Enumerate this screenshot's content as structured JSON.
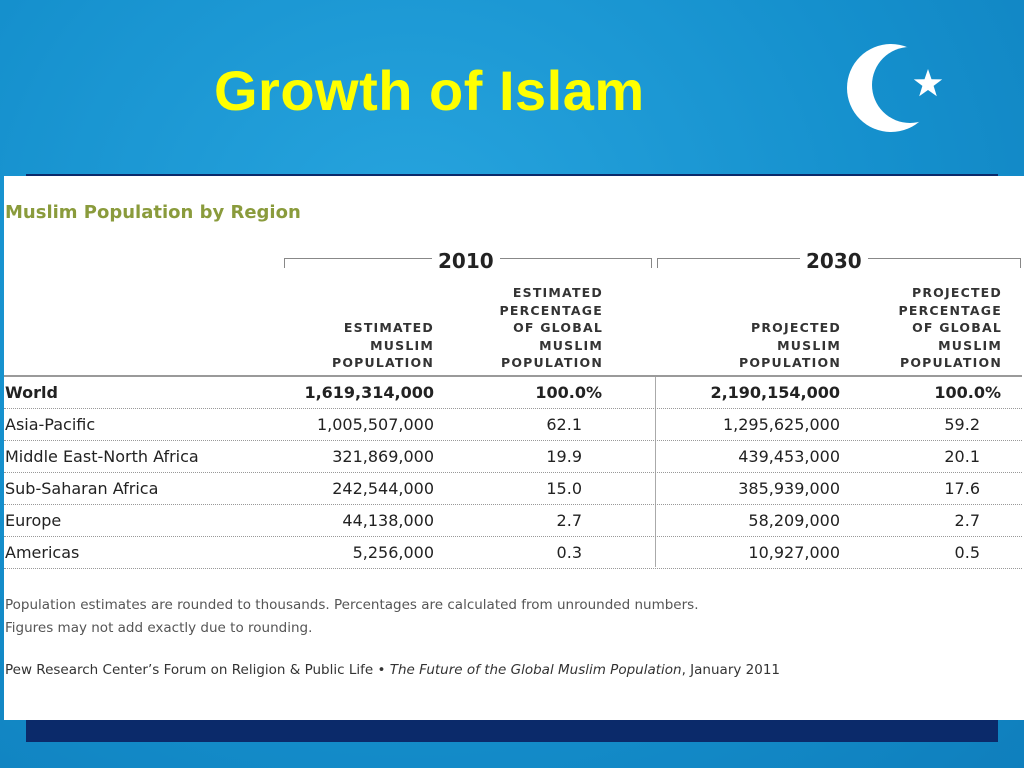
{
  "slide": {
    "title": "Growth of Islam",
    "accent_color": "#ffff00",
    "background_color": "#1591cf",
    "emblem_icon": "crescent-star-icon"
  },
  "table": {
    "title": "Muslim Population by Region",
    "groups": [
      {
        "year": "2010"
      },
      {
        "year": "2030"
      }
    ],
    "headers": [
      "ESTIMATED\nMUSLIM\nPOPULATION",
      "ESTIMATED\nPERCENTAGE\nOF GLOBAL\nMUSLIM\nPOPULATION",
      "PROJECTED\nMUSLIM\nPOPULATION",
      "PROJECTED\nPERCENTAGE\nOF GLOBAL\nMUSLIM\nPOPULATION"
    ],
    "rows": [
      {
        "region": "World",
        "pop_2010": "1,619,314,000",
        "pct_2010": "100.0%",
        "pop_2030": "2,190,154,000",
        "pct_2030": "100.0%"
      },
      {
        "region": "Asia-Pacific",
        "pop_2010": "1,005,507,000",
        "pct_2010": "62.1",
        "pop_2030": "1,295,625,000",
        "pct_2030": "59.2"
      },
      {
        "region": "Middle East-North Africa",
        "pop_2010": "321,869,000",
        "pct_2010": "19.9",
        "pop_2030": "439,453,000",
        "pct_2030": "20.1"
      },
      {
        "region": "Sub-Saharan Africa",
        "pop_2010": "242,544,000",
        "pct_2010": "15.0",
        "pop_2030": "385,939,000",
        "pct_2030": "17.6"
      },
      {
        "region": "Europe",
        "pop_2010": "44,138,000",
        "pct_2010": "2.7",
        "pop_2030": "58,209,000",
        "pct_2030": "2.7"
      },
      {
        "region": "Americas",
        "pop_2010": "5,256,000",
        "pct_2010": "0.3",
        "pop_2030": "10,927,000",
        "pct_2030": "0.5"
      }
    ],
    "notes": [
      "Population estimates are rounded to thousands. Percentages are calculated from unrounded numbers.",
      "Figures may not add exactly due to rounding."
    ],
    "source": {
      "prefix": "Pew Research Center’s Forum on Religion & Public Life • ",
      "publication": "The Future of the Global Muslim Population",
      "suffix": ", January 2011"
    }
  }
}
